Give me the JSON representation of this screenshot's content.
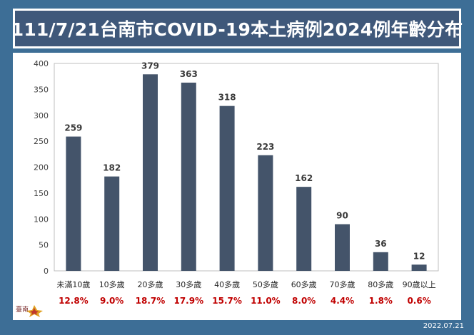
{
  "title": "111/7/21台南市COVID-19本土病例2024例年齡分布",
  "footer_date": "2022.07.21",
  "logo_text": "臺南",
  "chart_data": {
    "type": "bar",
    "title": "111/7/21台南市COVID-19本土病例2024例年齡分布",
    "xlabel": "",
    "ylabel": "",
    "categories": [
      "未滿10歲",
      "10多歲",
      "20多歲",
      "30多歲",
      "40多歲",
      "50多歲",
      "60多歲",
      "70多歲",
      "80多歲",
      "90歲以上"
    ],
    "values": [
      259,
      182,
      379,
      363,
      318,
      223,
      162,
      90,
      36,
      12
    ],
    "percentages": [
      "12.8%",
      "9.0%",
      "18.7%",
      "17.9%",
      "15.7%",
      "11.0%",
      "8.0%",
      "4.4%",
      "1.8%",
      "0.6%"
    ],
    "ylim": [
      0,
      400
    ],
    "yticks": [
      0,
      50,
      100,
      150,
      200,
      250,
      300,
      350,
      400
    ],
    "grid": false,
    "legend": "none",
    "colors": {
      "bar": "#44546a",
      "percent_text": "#c00000",
      "value_text": "#3a3a3a",
      "title_bg": "#3f587a",
      "page_bg": "#3d6e96"
    }
  }
}
